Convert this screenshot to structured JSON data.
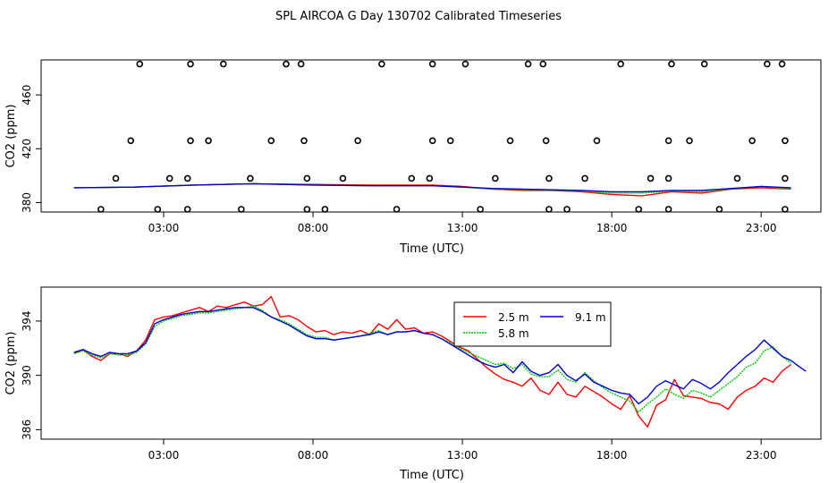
{
  "chart_data": {
    "type": "line",
    "title": "SPL AIRCOA G  Day 130702  Calibrated Timeseries",
    "panels": [
      {
        "id": "top",
        "xlabel": "Time (UTC)",
        "ylabel": "CO2 (ppm)",
        "xlim": [
          -1.1,
          25.0
        ],
        "ylim": [
          373,
          486
        ],
        "x_ticks": [
          3,
          8,
          13,
          18,
          23
        ],
        "x_tick_labels": [
          "03:00",
          "08:00",
          "13:00",
          "18:00",
          "23:00"
        ],
        "y_ticks": [
          380,
          420,
          460
        ],
        "y_tick_labels": [
          "380",
          "420",
          "460"
        ],
        "markers": {
          "style": "open-circle",
          "points": [
            [
              0.9,
              375
            ],
            [
              2.2,
              483
            ],
            [
              2.8,
              375
            ],
            [
              3.8,
              375
            ],
            [
              3.9,
              483
            ],
            [
              5.0,
              483
            ],
            [
              5.6,
              375
            ],
            [
              7.1,
              483
            ],
            [
              7.6,
              483
            ],
            [
              7.8,
              375
            ],
            [
              8.4,
              375
            ],
            [
              10.3,
              483
            ],
            [
              10.8,
              375
            ],
            [
              12.0,
              483
            ],
            [
              13.1,
              483
            ],
            [
              13.6,
              375
            ],
            [
              15.2,
              483
            ],
            [
              15.7,
              483
            ],
            [
              15.9,
              375
            ],
            [
              16.5,
              375
            ],
            [
              18.3,
              483
            ],
            [
              18.9,
              375
            ],
            [
              19.9,
              375
            ],
            [
              20.0,
              483
            ],
            [
              21.1,
              483
            ],
            [
              21.6,
              375
            ],
            [
              23.2,
              483
            ],
            [
              23.7,
              483
            ],
            [
              23.8,
              375
            ],
            [
              1.4,
              398
            ],
            [
              3.2,
              398
            ],
            [
              3.8,
              398
            ],
            [
              5.9,
              398
            ],
            [
              7.8,
              398
            ],
            [
              9.0,
              398
            ],
            [
              11.3,
              398
            ],
            [
              11.9,
              398
            ],
            [
              14.1,
              398
            ],
            [
              15.9,
              398
            ],
            [
              17.1,
              398
            ],
            [
              19.3,
              398
            ],
            [
              19.9,
              398
            ],
            [
              22.2,
              398
            ],
            [
              23.8,
              398
            ],
            [
              1.9,
              426
            ],
            [
              3.9,
              426
            ],
            [
              4.5,
              426
            ],
            [
              6.6,
              426
            ],
            [
              7.7,
              426
            ],
            [
              9.5,
              426
            ],
            [
              12.0,
              426
            ],
            [
              12.6,
              426
            ],
            [
              14.6,
              426
            ],
            [
              15.8,
              426
            ],
            [
              17.5,
              426
            ],
            [
              19.9,
              426
            ],
            [
              20.6,
              426
            ],
            [
              22.7,
              426
            ],
            [
              23.8,
              426
            ]
          ]
        },
        "series": [
          {
            "name": "2.5 m",
            "color": "#ff0000",
            "x": [
              0,
              2,
              4,
              6,
              8,
              10,
              12,
              13,
              14,
              15,
              16,
              17,
              18,
              19,
              20,
              21,
              22,
              23,
              24
            ],
            "y": [
              391,
              391.5,
              393,
              394,
              393.5,
              393,
              393,
              392,
              390,
              389,
              389,
              388,
              386,
              385,
              388,
              387,
              390,
              391,
              390
            ]
          },
          {
            "name": "5.8 m",
            "color": "#00cc00",
            "x": [
              0,
              2,
              4,
              6,
              8,
              10,
              12,
              13,
              14,
              15,
              16,
              17,
              18,
              19,
              20,
              21,
              22,
              23,
              24
            ],
            "y": [
              391,
              391.5,
              393,
              394,
              393,
              392.5,
              392.5,
              391.5,
              390,
              389.5,
              389,
              388.5,
              387,
              387,
              388.5,
              388,
              390,
              392,
              390
            ]
          },
          {
            "name": "9.1 m",
            "color": "#0000cc",
            "x": [
              0,
              2,
              4,
              6,
              8,
              10,
              12,
              13,
              14,
              15,
              16,
              17,
              18,
              19,
              20,
              21,
              22,
              23,
              24
            ],
            "y": [
              391,
              391.5,
              393,
              394,
              393,
              392.5,
              392.5,
              391.5,
              390.5,
              390,
              389.5,
              389,
              388,
              388,
              389,
              389,
              390.5,
              392,
              391
            ]
          }
        ]
      },
      {
        "id": "bottom",
        "xlabel": "Time (UTC)",
        "ylabel": "CO2 (ppm)",
        "xlim": [
          -1.1,
          25.0
        ],
        "ylim": [
          385.3,
          396.5
        ],
        "x_ticks": [
          3,
          8,
          13,
          18,
          23
        ],
        "x_tick_labels": [
          "03:00",
          "08:00",
          "13:00",
          "18:00",
          "23:00"
        ],
        "y_ticks": [
          386,
          390,
          394
        ],
        "y_tick_labels": [
          "386",
          "390",
          "394"
        ],
        "legend": [
          "2.5 m",
          "9.1 m",
          "5.8 m"
        ],
        "series": [
          {
            "name": "2.5 m",
            "color": "#ff0000",
            "x": [
              0,
              0.3,
              0.6,
              0.9,
              1.2,
              1.5,
              1.8,
              2.1,
              2.4,
              2.7,
              3.0,
              3.3,
              3.6,
              3.9,
              4.2,
              4.5,
              4.8,
              5.1,
              5.4,
              5.7,
              6.0,
              6.3,
              6.6,
              6.9,
              7.2,
              7.5,
              7.8,
              8.1,
              8.4,
              8.7,
              9.0,
              9.3,
              9.6,
              9.9,
              10.2,
              10.5,
              10.8,
              11.1,
              11.4,
              11.7,
              12.0,
              12.3,
              12.6,
              12.9,
              13.2,
              13.5,
              13.8,
              14.1,
              14.4,
              14.7,
              15.0,
              15.3,
              15.6,
              15.9,
              16.2,
              16.5,
              16.8,
              17.1,
              17.4,
              17.7,
              18.0,
              18.3,
              18.6,
              18.9,
              19.2,
              19.5,
              19.8,
              20.1,
              20.4,
              20.7,
              21.0,
              21.3,
              21.6,
              21.9,
              22.2,
              22.5,
              22.8,
              23.1,
              23.4,
              23.7,
              24.0
            ],
            "y": [
              391.6,
              391.9,
              391.4,
              391.1,
              391.6,
              391.6,
              391.4,
              391.8,
              392.6,
              394.1,
              394.3,
              394.4,
              394.6,
              394.8,
              395.0,
              394.7,
              395.1,
              395.0,
              395.2,
              395.4,
              395.1,
              395.2,
              395.8,
              394.3,
              394.4,
              394.1,
              393.6,
              393.2,
              393.3,
              393.0,
              393.2,
              393.1,
              393.3,
              393.0,
              393.8,
              393.4,
              394.1,
              393.4,
              393.5,
              393.1,
              393.2,
              392.9,
              392.5,
              392.1,
              391.8,
              391.2,
              390.6,
              390.1,
              389.7,
              389.5,
              389.2,
              389.8,
              388.9,
              388.6,
              389.5,
              388.6,
              388.4,
              389.2,
              388.8,
              388.4,
              387.9,
              387.5,
              388.5,
              387.0,
              386.2,
              387.8,
              388.2,
              389.7,
              388.5,
              388.4,
              388.3,
              388.0,
              387.9,
              387.5,
              388.4,
              388.9,
              389.2,
              389.8,
              389.5,
              390.3,
              390.8
            ]
          },
          {
            "name": "5.8 m",
            "color": "#00cc00",
            "x": [
              0,
              0.3,
              0.6,
              0.9,
              1.2,
              1.5,
              1.8,
              2.1,
              2.4,
              2.7,
              3.0,
              3.3,
              3.6,
              3.9,
              4.2,
              4.5,
              4.8,
              5.1,
              5.4,
              5.7,
              6.0,
              6.3,
              6.6,
              6.9,
              7.2,
              7.5,
              7.8,
              8.1,
              8.4,
              8.7,
              9.0,
              9.3,
              9.6,
              9.9,
              10.2,
              10.5,
              10.8,
              11.1,
              11.4,
              11.7,
              12.0,
              12.3,
              12.6,
              12.9,
              13.2,
              13.5,
              13.8,
              14.1,
              14.4,
              14.7,
              15.0,
              15.3,
              15.6,
              15.9,
              16.2,
              16.5,
              16.8,
              17.1,
              17.4,
              17.7,
              18.0,
              18.3,
              18.6,
              18.9,
              19.2,
              19.5,
              19.8,
              20.1,
              20.4,
              20.7,
              21.0,
              21.3,
              21.6,
              21.9,
              22.2,
              22.5,
              22.8,
              23.1,
              23.4,
              23.7,
              24.0
            ],
            "y": [
              391.6,
              391.8,
              391.5,
              391.3,
              391.6,
              391.5,
              391.5,
              391.7,
              392.3,
              393.6,
              394.0,
              394.2,
              394.4,
              394.5,
              394.6,
              394.6,
              394.7,
              394.8,
              394.9,
              395.0,
              395.1,
              394.8,
              394.3,
              394.1,
              393.8,
              393.4,
              393.0,
              392.8,
              392.8,
              392.6,
              392.7,
              392.8,
              392.9,
              393.1,
              393.3,
              393.0,
              393.2,
              393.2,
              393.3,
              393.1,
              393.0,
              392.7,
              392.4,
              392.0,
              391.7,
              391.4,
              391.1,
              390.8,
              390.9,
              390.5,
              390.8,
              390.1,
              389.9,
              389.9,
              390.4,
              389.7,
              389.5,
              390.2,
              389.6,
              389.1,
              388.7,
              388.4,
              388.1,
              387.3,
              387.9,
              388.4,
              389.0,
              388.6,
              388.3,
              388.9,
              388.7,
              388.4,
              388.9,
              389.4,
              389.9,
              390.6,
              390.9,
              391.8,
              392.1,
              391.4,
              390.9
            ]
          },
          {
            "name": "9.1 m",
            "color": "#0000cc",
            "x": [
              0,
              0.3,
              0.6,
              0.9,
              1.2,
              1.5,
              1.8,
              2.1,
              2.4,
              2.7,
              3.0,
              3.3,
              3.6,
              3.9,
              4.2,
              4.5,
              4.8,
              5.1,
              5.4,
              5.7,
              6.0,
              6.3,
              6.6,
              6.9,
              7.2,
              7.5,
              7.8,
              8.1,
              8.4,
              8.7,
              9.0,
              9.3,
              9.6,
              9.9,
              10.2,
              10.5,
              10.8,
              11.1,
              11.4,
              11.7,
              12.0,
              12.3,
              12.6,
              12.9,
              13.2,
              13.5,
              13.8,
              14.1,
              14.4,
              14.7,
              15.0,
              15.3,
              15.6,
              15.9,
              16.2,
              16.5,
              16.8,
              17.1,
              17.4,
              17.7,
              18.0,
              18.3,
              18.6,
              18.9,
              19.2,
              19.5,
              19.8,
              20.1,
              20.4,
              20.7,
              21.0,
              21.3,
              21.6,
              21.9,
              22.2,
              22.5,
              22.8,
              23.1,
              23.4,
              23.7,
              24.0,
              24.3,
              24.5
            ],
            "y": [
              391.7,
              391.9,
              391.6,
              391.4,
              391.7,
              391.6,
              391.6,
              391.8,
              392.4,
              393.8,
              394.1,
              394.3,
              394.5,
              394.6,
              394.7,
              394.7,
              394.8,
              394.9,
              395.0,
              395.0,
              395.0,
              394.7,
              394.3,
              394.0,
              393.7,
              393.3,
              392.9,
              392.7,
              392.7,
              392.6,
              392.7,
              392.8,
              392.9,
              393.0,
              393.2,
              393.0,
              393.2,
              393.2,
              393.3,
              393.1,
              393.0,
              392.7,
              392.3,
              391.9,
              391.5,
              391.1,
              390.8,
              390.6,
              390.8,
              390.2,
              391.0,
              390.3,
              390.0,
              390.2,
              390.8,
              390.0,
              389.6,
              390.1,
              389.5,
              389.2,
              388.9,
              388.7,
              388.6,
              387.9,
              388.4,
              389.2,
              389.6,
              389.3,
              389.0,
              389.7,
              389.4,
              389.0,
              389.5,
              390.2,
              390.8,
              391.4,
              391.9,
              392.6,
              392.0,
              391.4,
              391.1,
              390.6,
              390.3
            ]
          }
        ]
      }
    ]
  }
}
